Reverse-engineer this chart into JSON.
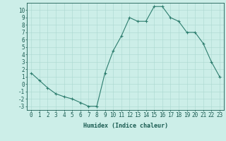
{
  "x": [
    0,
    1,
    2,
    3,
    4,
    5,
    6,
    7,
    8,
    9,
    10,
    11,
    12,
    13,
    14,
    15,
    16,
    17,
    18,
    19,
    20,
    21,
    22,
    23
  ],
  "y": [
    1.5,
    0.5,
    -0.5,
    -1.3,
    -1.7,
    -2.0,
    -2.5,
    -3.0,
    -3.0,
    1.5,
    4.5,
    6.5,
    9.0,
    8.5,
    8.5,
    10.5,
    10.5,
    9.0,
    8.5,
    7.0,
    7.0,
    5.5,
    3.0,
    1.0
  ],
  "line_color": "#2d7d6e",
  "marker": "+",
  "bg_color": "#cceee8",
  "grid_color": "#aad8d0",
  "xlabel": "Humidex (Indice chaleur)",
  "ylim": [
    -3.5,
    11.0
  ],
  "xlim": [
    -0.5,
    23.5
  ],
  "yticks": [
    -3,
    -2,
    -1,
    0,
    1,
    2,
    3,
    4,
    5,
    6,
    7,
    8,
    9,
    10
  ],
  "xticks": [
    0,
    1,
    2,
    3,
    4,
    5,
    6,
    7,
    8,
    9,
    10,
    11,
    12,
    13,
    14,
    15,
    16,
    17,
    18,
    19,
    20,
    21,
    22,
    23
  ],
  "tick_color": "#1a5c52",
  "axis_color": "#1a5c52",
  "label_fontsize": 6.0,
  "tick_fontsize": 5.5
}
